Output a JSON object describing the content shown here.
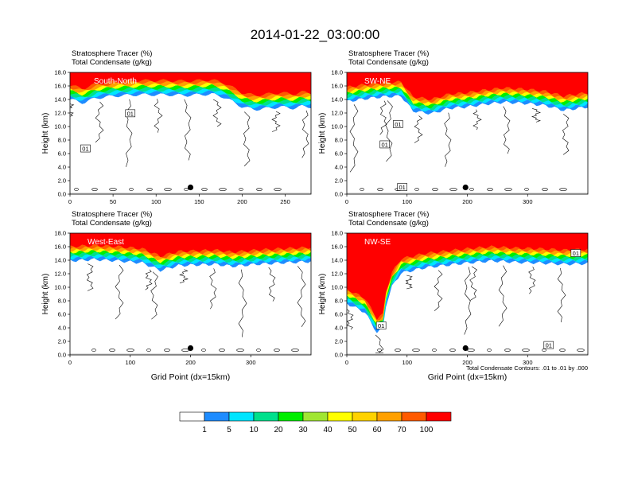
{
  "title": "2014-01-22_03:00:00",
  "colorbar": {
    "colors": [
      "#ffffff",
      "#1e8cff",
      "#00e5ff",
      "#00e08c",
      "#00ee00",
      "#a0e632",
      "#ffff00",
      "#ffd200",
      "#ffa000",
      "#ff5a00",
      "#ff0000"
    ],
    "labels": [
      "1",
      "5",
      "10",
      "20",
      "30",
      "40",
      "50",
      "60",
      "70",
      "100"
    ]
  },
  "chart_data": [
    {
      "type": "heatmap",
      "name": "South-North",
      "subtitle1": "Stratosphere Tracer   (%)",
      "subtitle2": "Total Condensate   (g/kg)",
      "ylabel": "Height (km)",
      "xlabel": "",
      "ylim": [
        0,
        18
      ],
      "xlim": [
        0,
        280
      ],
      "yticks": [
        "0.0",
        "2.0",
        "4.0",
        "6.0",
        "8.0",
        "10.0",
        "12.0",
        "14.0",
        "16.0",
        "18.0"
      ],
      "xticks": [
        0,
        50,
        100,
        150,
        200,
        250
      ],
      "marker": {
        "x": 140,
        "y": 1.0
      },
      "contour_labels": [
        {
          "text": "01",
          "x": 70,
          "y": 11.9
        },
        {
          "text": "01",
          "x": 18,
          "y": 6.7
        }
      ],
      "tracer_floor": [
        [
          0,
          14.9
        ],
        [
          15,
          14.4
        ],
        [
          30,
          15.1
        ],
        [
          50,
          15.4
        ],
        [
          80,
          15.6
        ],
        [
          110,
          15.6
        ],
        [
          135,
          15.5
        ],
        [
          150,
          15.6
        ],
        [
          165,
          15.7
        ],
        [
          180,
          15.2
        ],
        [
          200,
          13.8
        ],
        [
          215,
          13.4
        ],
        [
          230,
          13.6
        ],
        [
          245,
          13.8
        ],
        [
          260,
          13.6
        ],
        [
          270,
          13.9
        ],
        [
          280,
          13.8
        ]
      ]
    },
    {
      "type": "heatmap",
      "name": "SW-NE",
      "subtitle1": "Stratosphere Tracer   (%)",
      "subtitle2": "Total Condensate   (g/kg)",
      "ylabel": "Height (km)",
      "xlabel": "",
      "ylim": [
        0,
        18
      ],
      "xlim": [
        0,
        400
      ],
      "yticks": [
        "0.0",
        "2.0",
        "4.0",
        "6.0",
        "8.0",
        "10.0",
        "12.0",
        "14.0",
        "16.0",
        "18.0"
      ],
      "xticks": [
        0,
        100,
        200,
        300
      ],
      "marker": {
        "x": 197,
        "y": 1.0
      },
      "contour_labels": [
        {
          "text": "01",
          "x": 85,
          "y": 10.3
        },
        {
          "text": "01",
          "x": 63,
          "y": 7.3
        },
        {
          "text": "01",
          "x": 92,
          "y": 1.0
        }
      ],
      "tracer_floor": [
        [
          0,
          14.6
        ],
        [
          30,
          15.0
        ],
        [
          60,
          15.3
        ],
        [
          90,
          15.4
        ],
        [
          110,
          13.2
        ],
        [
          140,
          12.8
        ],
        [
          170,
          13.6
        ],
        [
          200,
          13.8
        ],
        [
          230,
          14.2
        ],
        [
          260,
          14.5
        ],
        [
          300,
          14.3
        ],
        [
          330,
          14.0
        ],
        [
          360,
          13.3
        ],
        [
          400,
          13.8
        ]
      ]
    },
    {
      "type": "heatmap",
      "name": "West-East",
      "subtitle1": "Stratosphere Tracer   (%)",
      "subtitle2": "Total Condensate   (g/kg)",
      "ylabel": "Height (km)",
      "xlabel": "Grid Point (dx=15km)",
      "ylim": [
        0,
        18
      ],
      "xlim": [
        0,
        400
      ],
      "yticks": [
        "0.0",
        "2.0",
        "4.0",
        "6.0",
        "8.0",
        "10.0",
        "12.0",
        "14.0",
        "16.0",
        "18.0"
      ],
      "xticks": [
        0,
        100,
        200,
        300
      ],
      "marker": {
        "x": 200,
        "y": 1.0
      },
      "contour_labels": [],
      "tracer_floor": [
        [
          0,
          14.8
        ],
        [
          40,
          15.0
        ],
        [
          80,
          14.8
        ],
        [
          120,
          14.5
        ],
        [
          150,
          13.4
        ],
        [
          180,
          14.1
        ],
        [
          210,
          14.2
        ],
        [
          240,
          14.3
        ],
        [
          270,
          14.0
        ],
        [
          310,
          14.3
        ],
        [
          350,
          14.5
        ],
        [
          400,
          14.7
        ]
      ]
    },
    {
      "type": "heatmap",
      "name": "NW-SE",
      "subtitle1": "Stratosphere Tracer   (%)",
      "subtitle2": "Total Condensate   (g/kg)",
      "ylabel": "Height (km)",
      "xlabel": "Grid Point (dx=15km)",
      "ylim": [
        0,
        18
      ],
      "xlim": [
        0,
        400
      ],
      "yticks": [
        "0.0",
        "2.0",
        "4.0",
        "6.0",
        "8.0",
        "10.0",
        "12.0",
        "14.0",
        "16.0",
        "18.0"
      ],
      "xticks": [
        0,
        100,
        200,
        300
      ],
      "marker": {
        "x": 197,
        "y": 1.0
      },
      "contour_labels": [
        {
          "text": "01",
          "x": 57,
          "y": 4.3
        },
        {
          "text": "01",
          "x": 335,
          "y": 1.4
        },
        {
          "text": "01",
          "x": 380,
          "y": 15.0
        }
      ],
      "tracer_floor": [
        [
          0,
          8.5
        ],
        [
          30,
          7.2
        ],
        [
          50,
          4.2
        ],
        [
          60,
          4.8
        ],
        [
          65,
          8.2
        ],
        [
          75,
          11.0
        ],
        [
          90,
          13.0
        ],
        [
          110,
          13.4
        ],
        [
          130,
          13.8
        ],
        [
          160,
          14.1
        ],
        [
          200,
          14.5
        ],
        [
          240,
          14.8
        ],
        [
          280,
          14.6
        ],
        [
          320,
          14.5
        ],
        [
          360,
          14.3
        ],
        [
          400,
          14.4
        ]
      ],
      "note": "Total Condensate Contours: .01 to .01 by .000"
    }
  ]
}
